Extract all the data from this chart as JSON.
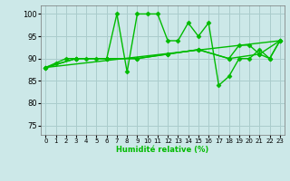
{
  "xlabel": "Humidité relative (%)",
  "xlim": [
    -0.5,
    23.5
  ],
  "ylim": [
    73,
    102
  ],
  "yticks": [
    75,
    80,
    85,
    90,
    95,
    100
  ],
  "xticks": [
    0,
    1,
    2,
    3,
    4,
    5,
    6,
    7,
    8,
    9,
    10,
    11,
    12,
    13,
    14,
    15,
    16,
    17,
    18,
    19,
    20,
    21,
    22,
    23
  ],
  "bg_color": "#cce8e8",
  "line_color": "#00bb00",
  "grid_color": "#aacccc",
  "lines": [
    {
      "x": [
        0,
        1,
        2,
        3,
        4,
        5,
        6,
        7,
        8,
        9,
        10,
        11,
        12,
        13,
        14,
        15,
        16,
        17,
        18,
        19,
        20,
        21,
        22,
        23
      ],
      "y": [
        88,
        89,
        90,
        90,
        90,
        90,
        90,
        100,
        87,
        100,
        100,
        100,
        94,
        94,
        98,
        95,
        98,
        84,
        86,
        90,
        90,
        92,
        90,
        94
      ]
    },
    {
      "x": [
        0,
        3,
        6,
        9,
        12,
        15,
        18,
        21,
        23
      ],
      "y": [
        88,
        90,
        90,
        90,
        91,
        92,
        90,
        91,
        94
      ]
    },
    {
      "x": [
        0,
        3,
        6,
        9,
        12,
        15,
        18,
        19,
        20,
        21,
        22,
        23
      ],
      "y": [
        88,
        90,
        90,
        90,
        91,
        92,
        90,
        93,
        93,
        91,
        90,
        94
      ]
    },
    {
      "x": [
        0,
        23
      ],
      "y": [
        88,
        94
      ]
    }
  ]
}
